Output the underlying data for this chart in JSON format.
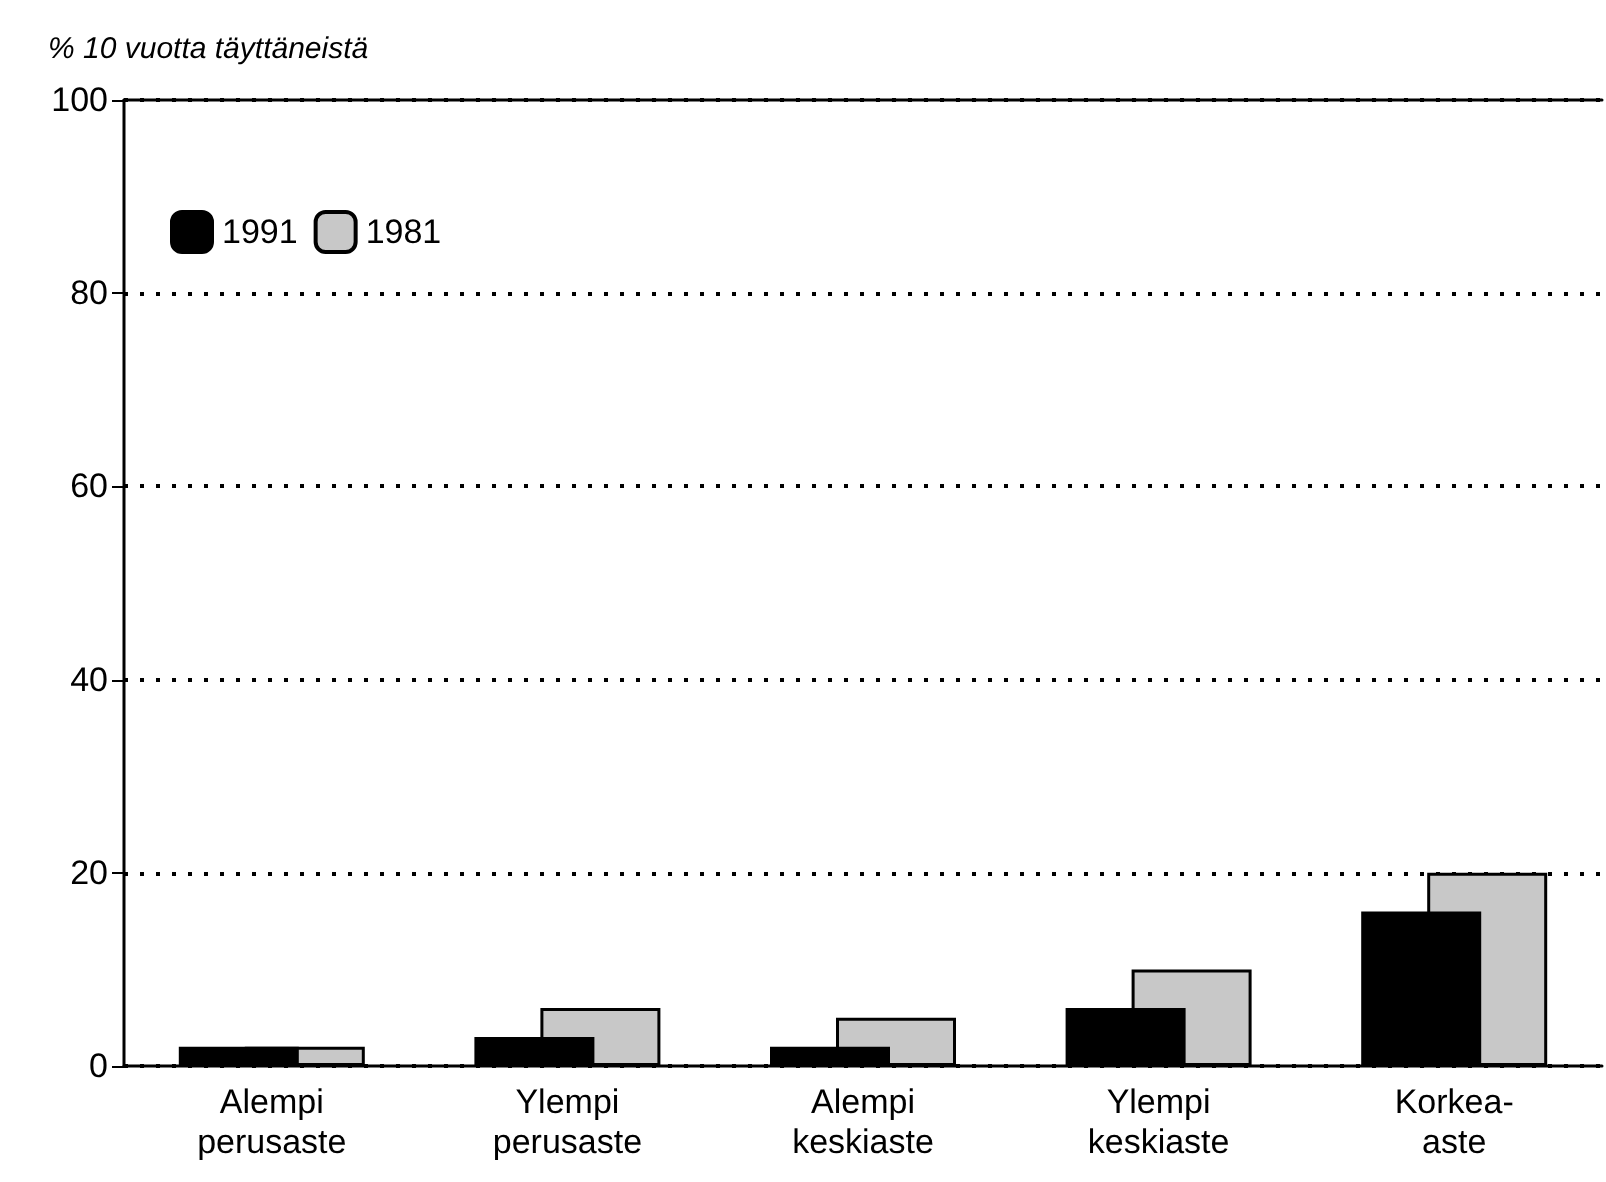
{
  "chart_data": {
    "type": "bar",
    "ylabel": "% 10 vuotta täyttäneistä",
    "categories": [
      "Alempi perusaste",
      "Ylempi perusaste",
      "Alempi keskiaste",
      "Ylempi keskiaste",
      "Korkea-aste"
    ],
    "series": [
      {
        "name": "1991",
        "color": "#000000",
        "values": [
          2,
          3,
          2,
          6,
          16
        ]
      },
      {
        "name": "1981",
        "color": "#c8c8c8",
        "values": [
          2,
          6,
          5,
          10,
          20
        ]
      }
    ],
    "ylim": [
      0,
      100
    ],
    "yticks": [
      0,
      20,
      40,
      60,
      80,
      100
    ],
    "grid": "y",
    "legend": "top left"
  }
}
